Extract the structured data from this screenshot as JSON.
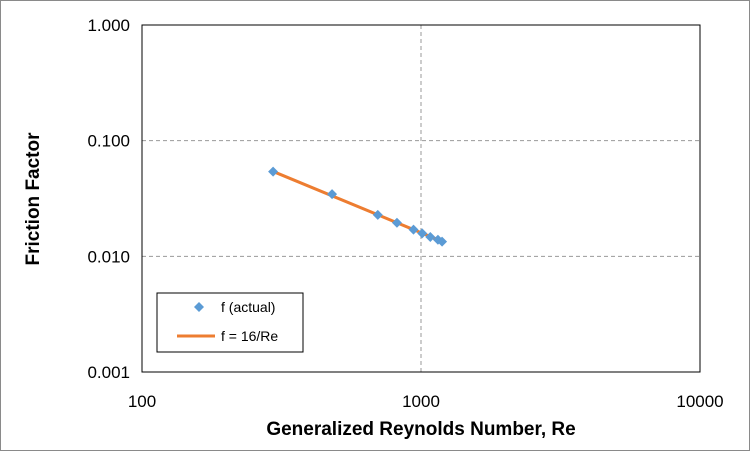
{
  "chart_data": {
    "type": "scatter",
    "title": "",
    "xlabel": "Generalized Reynolds Number, Re",
    "ylabel": "Friction Factor",
    "x_scale": "log",
    "y_scale": "log",
    "xlim": [
      100,
      10000
    ],
    "ylim": [
      0.001,
      1
    ],
    "x_ticks": [
      "100",
      "1000",
      "10000"
    ],
    "y_ticks": [
      "0.001",
      "0.010",
      "0.100",
      "1.000"
    ],
    "grid": "dashed major gridlines",
    "legend_position": "bottom-left",
    "series": [
      {
        "name": "f (actual)",
        "kind": "markers",
        "marker": "diamond",
        "color": "#5b9bd5",
        "points": [
          [
            295,
            0.054
          ],
          [
            480,
            0.0345
          ],
          [
            700,
            0.0228
          ],
          [
            820,
            0.0195
          ],
          [
            940,
            0.017
          ],
          [
            1010,
            0.0158
          ],
          [
            1080,
            0.0147
          ],
          [
            1150,
            0.0139
          ],
          [
            1190,
            0.0134
          ]
        ]
      },
      {
        "name": "f = 16/Re",
        "kind": "line",
        "color": "#ed7d31",
        "points": [
          [
            295,
            0.0542
          ],
          [
            1190,
            0.01345
          ]
        ]
      }
    ]
  }
}
